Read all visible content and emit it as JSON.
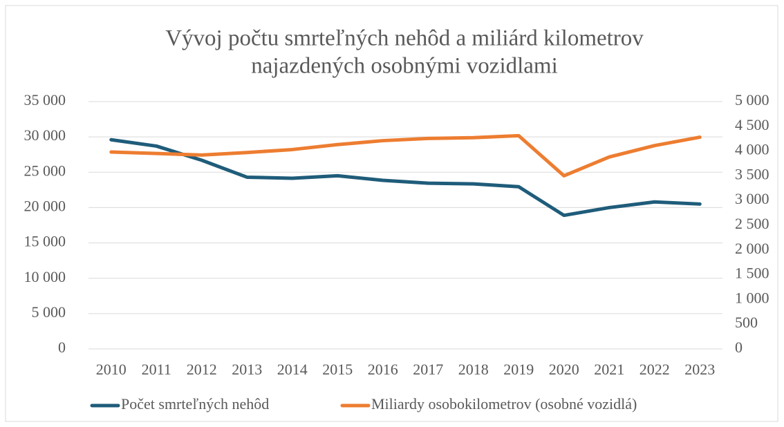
{
  "chart_data": {
    "type": "line",
    "title": [
      "Vývoj počtu smrteľných nehôd a miliárd kilometrov",
      "najazdených osobnými vozidlami"
    ],
    "categories": [
      "2010",
      "2011",
      "2012",
      "2013",
      "2014",
      "2015",
      "2016",
      "2017",
      "2018",
      "2019",
      "2020",
      "2021",
      "2022",
      "2023"
    ],
    "series": [
      {
        "name": "Počet smrteľných nehôd",
        "color": "#1f5c7a",
        "axis": "y",
        "values": [
          29600,
          28700,
          26700,
          24300,
          24150,
          24500,
          23850,
          23450,
          23350,
          22950,
          18900,
          20000,
          20800,
          20500
        ]
      },
      {
        "name": "Miliardy osobokilometrov (osobné vozidlá)",
        "color": "#ed7d31",
        "axis": "y2",
        "values": [
          3980,
          3950,
          3920,
          3970,
          4030,
          4130,
          4210,
          4255,
          4270,
          4310,
          3500,
          3880,
          4110,
          4280
        ]
      }
    ],
    "ylim": [
      0,
      35000
    ],
    "yticks": [
      0,
      {
        "value": 5000,
        "label": "5 000"
      },
      {
        "value": 10000,
        "label": "10 000"
      },
      {
        "value": 15000,
        "label": "15 000"
      },
      {
        "value": 20000,
        "label": "20 000"
      },
      {
        "value": 25000,
        "label": "25 000"
      },
      {
        "value": 30000,
        "label": "30 000"
      },
      {
        "value": 35000,
        "label": "35 000"
      }
    ],
    "y2lim": [
      0,
      5000
    ],
    "y2ticks": [
      0,
      500,
      {
        "value": 1000,
        "label": "1 000"
      },
      {
        "value": 1500,
        "label": "1 500"
      },
      {
        "value": 2000,
        "label": "2 000"
      },
      {
        "value": 2500,
        "label": "2 500"
      },
      {
        "value": 3000,
        "label": "3 000"
      },
      {
        "value": 3500,
        "label": "3 500"
      },
      {
        "value": 4000,
        "label": "4 000"
      },
      {
        "value": 4500,
        "label": "4 500"
      },
      {
        "value": 5000,
        "label": "5 000"
      }
    ],
    "grid": true,
    "legend": "bottom"
  }
}
